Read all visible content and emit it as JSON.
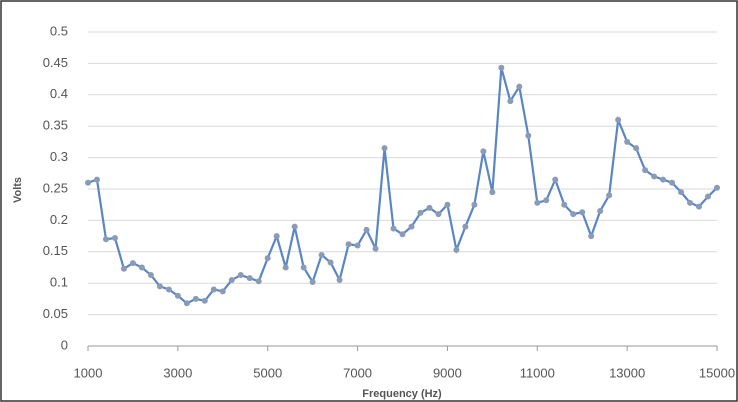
{
  "chart_data": {
    "type": "line",
    "x_label": "Frequency (Hz)",
    "y_label": "Volts",
    "x": [
      1000,
      1200,
      1400,
      1600,
      1800,
      2000,
      2200,
      2400,
      2600,
      2800,
      3000,
      3200,
      3400,
      3600,
      3800,
      4000,
      4200,
      4400,
      4600,
      4800,
      5000,
      5200,
      5400,
      5600,
      5800,
      6000,
      6200,
      6400,
      6600,
      6800,
      7000,
      7200,
      7400,
      7600,
      7800,
      8000,
      8200,
      8400,
      8600,
      8800,
      9000,
      9200,
      9400,
      9600,
      9800,
      10000,
      10200,
      10400,
      10600,
      10800,
      11000,
      11200,
      11400,
      11600,
      11800,
      12000,
      12200,
      12400,
      12600,
      12800,
      13000,
      13200,
      13400,
      13600,
      13800,
      14000,
      14200,
      14400,
      14600,
      14800,
      15000
    ],
    "series": [
      {
        "name": "Volts",
        "color": "#5b86c5",
        "marker_color": "#8a9bb5",
        "values": [
          0.26,
          0.265,
          0.17,
          0.172,
          0.123,
          0.132,
          0.125,
          0.113,
          0.095,
          0.09,
          0.08,
          0.068,
          0.075,
          0.072,
          0.09,
          0.087,
          0.105,
          0.113,
          0.108,
          0.103,
          0.14,
          0.175,
          0.125,
          0.19,
          0.125,
          0.102,
          0.145,
          0.133,
          0.105,
          0.162,
          0.16,
          0.185,
          0.155,
          0.315,
          0.187,
          0.178,
          0.19,
          0.212,
          0.22,
          0.21,
          0.225,
          0.153,
          0.19,
          0.225,
          0.31,
          0.245,
          0.443,
          0.39,
          0.413,
          0.335,
          0.228,
          0.232,
          0.265,
          0.225,
          0.21,
          0.213,
          0.175,
          0.215,
          0.24,
          0.36,
          0.325,
          0.315,
          0.28,
          0.27,
          0.265,
          0.26,
          0.245,
          0.228,
          0.222,
          0.238,
          0.252
        ]
      }
    ],
    "xlim": [
      1000,
      15000
    ],
    "xticks": [
      1000,
      3000,
      5000,
      7000,
      9000,
      11000,
      13000,
      15000
    ],
    "ylim": [
      0,
      0.5
    ],
    "yticks": [
      0,
      0.05,
      0.1,
      0.15,
      0.2,
      0.25,
      0.3,
      0.35,
      0.4,
      0.45,
      0.5
    ],
    "grid": true
  }
}
